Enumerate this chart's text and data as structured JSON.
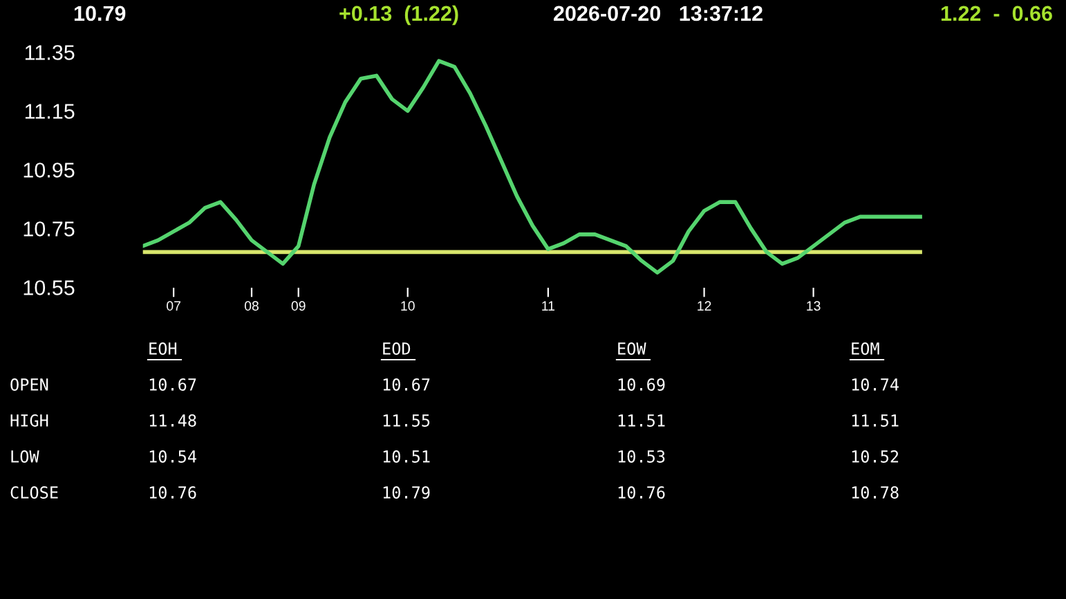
{
  "chart_data": {
    "type": "line",
    "categories": [
      null,
      null,
      "07",
      null,
      null,
      null,
      null,
      "08",
      null,
      null,
      "09",
      null,
      null,
      null,
      null,
      null,
      null,
      "10",
      null,
      null,
      null,
      null,
      null,
      null,
      null,
      null,
      "11",
      null,
      null,
      null,
      null,
      null,
      null,
      null,
      null,
      null,
      "12",
      null,
      null,
      null,
      null,
      null,
      null,
      "13",
      null,
      null,
      null,
      null,
      null,
      null,
      null
    ],
    "series": [
      {
        "color": "#55d46e",
        "values": [
          10.69,
          10.71,
          10.74,
          10.77,
          10.82,
          10.84,
          10.78,
          10.71,
          10.67,
          10.63,
          10.69,
          10.9,
          11.06,
          11.18,
          11.26,
          11.27,
          11.19,
          11.15,
          11.23,
          11.32,
          11.3,
          11.21,
          11.1,
          10.98,
          10.86,
          10.76,
          10.68,
          10.7,
          10.73,
          10.73,
          10.71,
          10.69,
          10.64,
          10.6,
          10.64,
          10.74,
          10.81,
          10.84,
          10.84,
          10.75,
          10.67,
          10.63,
          10.65,
          10.69,
          10.73,
          10.77,
          10.79,
          10.79,
          10.79,
          10.79,
          10.79
        ]
      }
    ],
    "ylim": [
      10.55,
      11.35
    ],
    "yticks": [
      10.55,
      10.75,
      10.95,
      11.15,
      11.35
    ],
    "ref_lines": [
      {
        "axis": "y",
        "value": 10.67,
        "color": "#d8e66c"
      }
    ],
    "annotations": [
      "10.79",
      "+0.13  (1.22)",
      "2026-07-20   13:37:12",
      "1.22  -  0.66",
      "EOH",
      "EOD",
      "EOW",
      "EOM",
      "OPEN",
      "10.67",
      "10.67",
      "10.69",
      "10.74",
      "HIGH",
      "11.48",
      "11.55",
      "11.51",
      "11.51",
      "LOW",
      "10.54",
      "10.51",
      "10.53",
      "10.52",
      "CLOSE",
      "10.76",
      "10.79",
      "10.76",
      "10.78"
    ]
  }
}
